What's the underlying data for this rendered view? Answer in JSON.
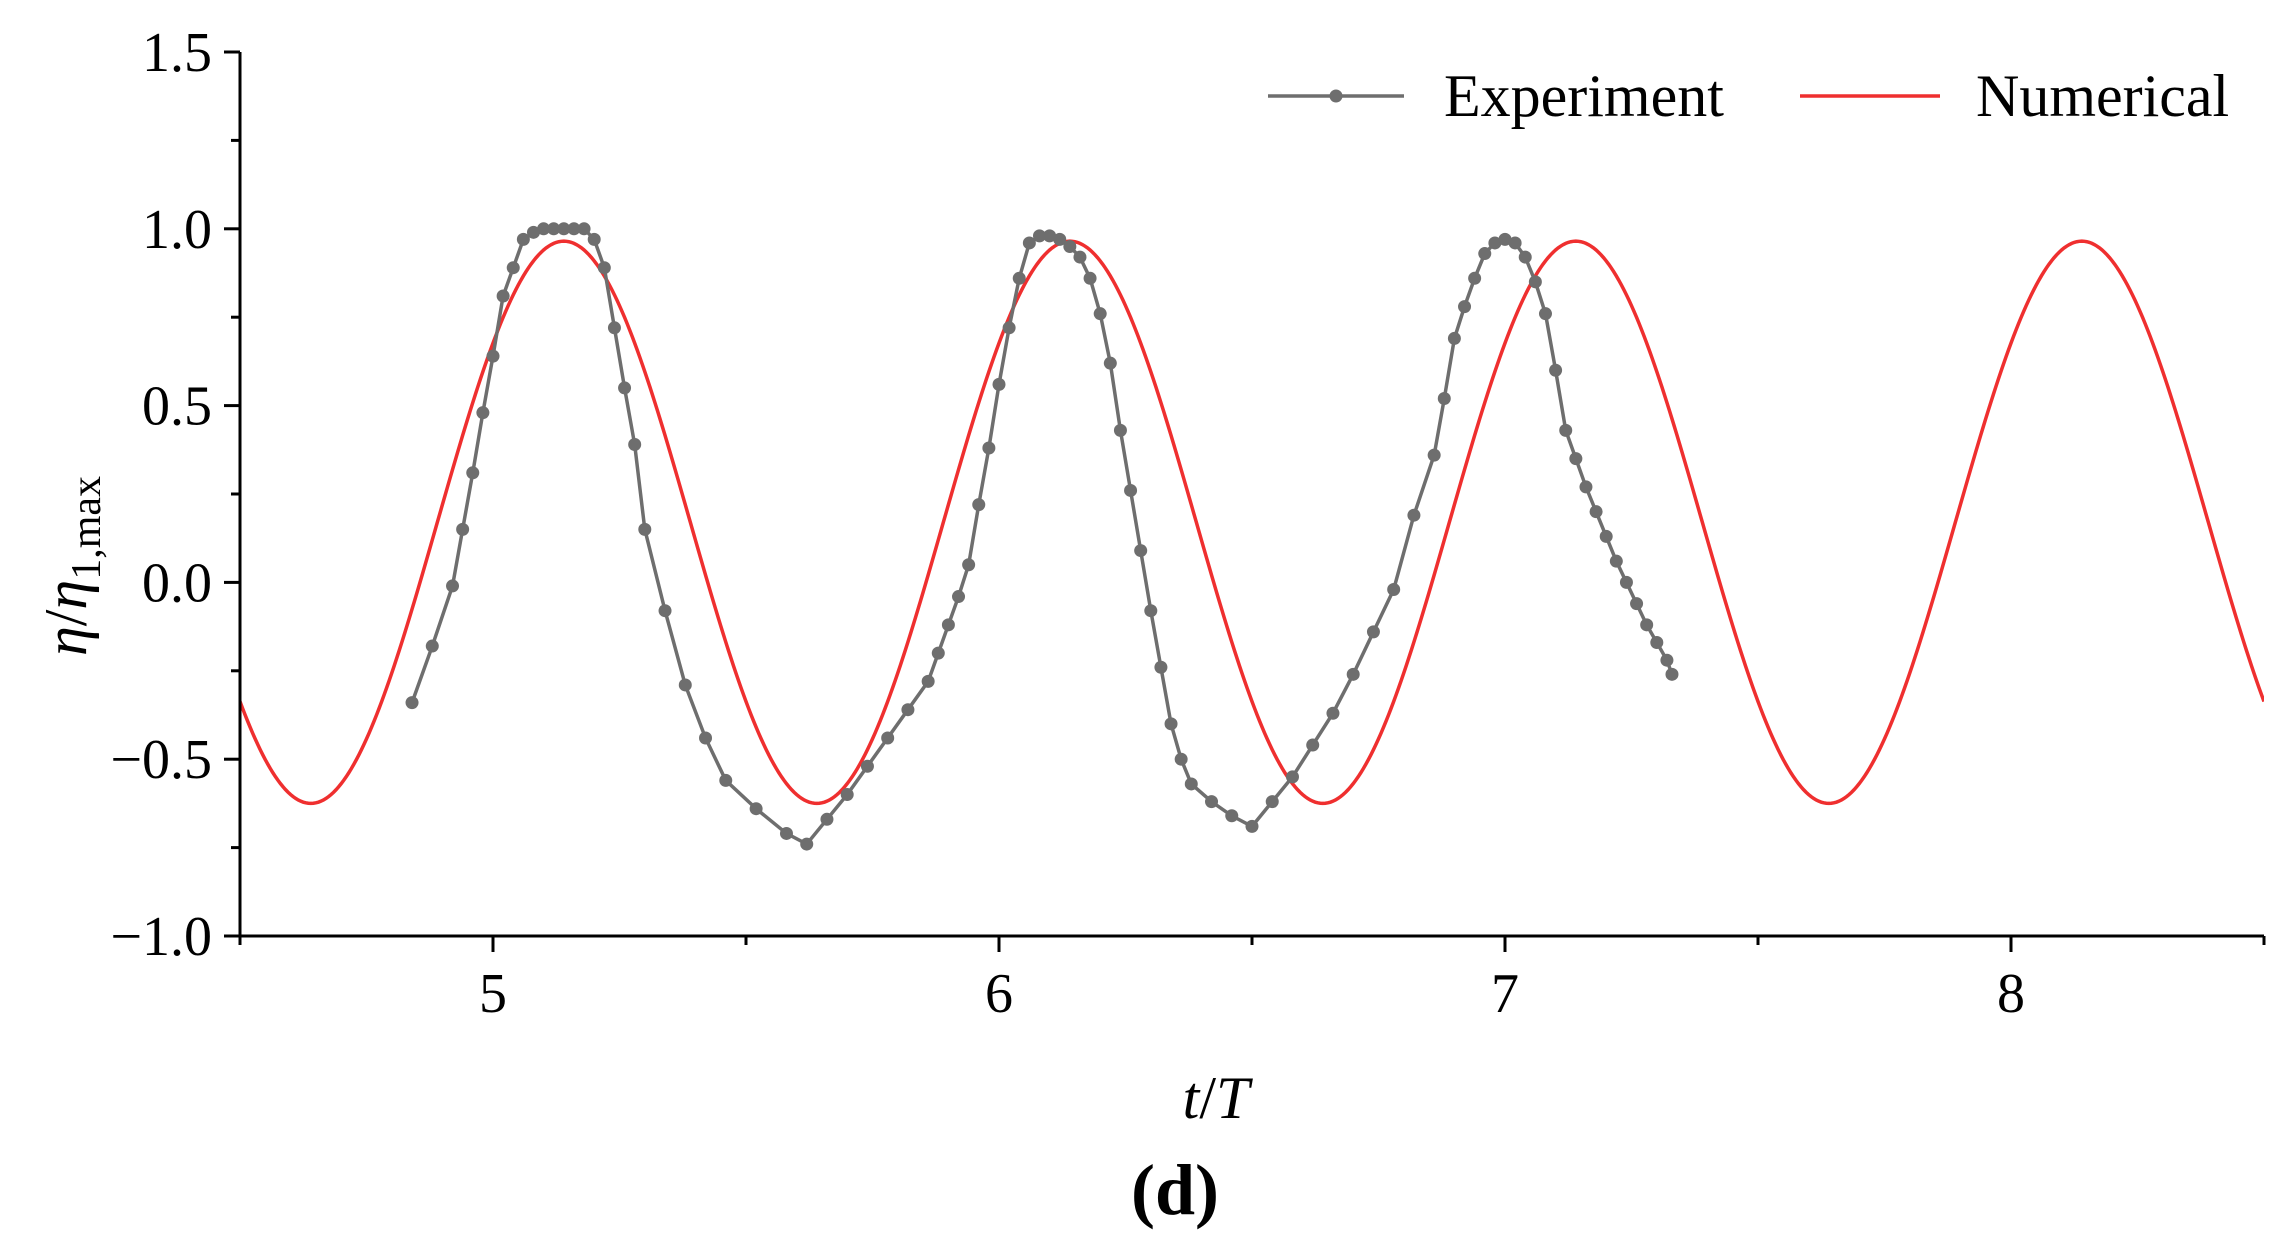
{
  "chart_data": {
    "type": "line",
    "title": "",
    "xlabel": "t/T",
    "ylabel": "η/η1,max",
    "xlabel_parts": {
      "a": "t",
      "sep": "/",
      "b": "T"
    },
    "ylabel_parts": {
      "a": "η",
      "sep": "/",
      "b": "η",
      "sub": "1,max"
    },
    "panel_label": "(d)",
    "xlim": [
      4.5,
      8.5
    ],
    "ylim": [
      -1.0,
      1.5
    ],
    "x_ticks": [
      5,
      6,
      7,
      8
    ],
    "y_ticks": [
      -1.0,
      -0.5,
      0.0,
      0.5,
      1.0,
      1.5
    ],
    "x_tick_labels": [
      "5",
      "6",
      "7",
      "8"
    ],
    "y_tick_labels": [
      "−1.0",
      "−0.5",
      "0.0",
      "0.5",
      "1.0",
      "1.5"
    ],
    "grid": false,
    "legend_position": "top-right",
    "series": [
      {
        "name": "Experiment",
        "color": "#6e6e6e",
        "marker": "circle",
        "x": [
          4.84,
          4.88,
          4.92,
          4.94,
          4.96,
          4.98,
          5.0,
          5.02,
          5.04,
          5.06,
          5.08,
          5.1,
          5.12,
          5.14,
          5.16,
          5.18,
          5.2,
          5.22,
          5.24,
          5.26,
          5.28,
          5.3,
          5.34,
          5.38,
          5.42,
          5.46,
          5.52,
          5.58,
          5.62,
          5.66,
          5.7,
          5.74,
          5.78,
          5.82,
          5.86,
          5.88,
          5.9,
          5.92,
          5.94,
          5.96,
          5.98,
          6.0,
          6.02,
          6.04,
          6.06,
          6.08,
          6.1,
          6.12,
          6.14,
          6.16,
          6.18,
          6.2,
          6.22,
          6.24,
          6.26,
          6.28,
          6.3,
          6.32,
          6.34,
          6.36,
          6.38,
          6.42,
          6.46,
          6.5,
          6.54,
          6.58,
          6.62,
          6.66,
          6.7,
          6.74,
          6.78,
          6.82,
          6.86,
          6.88,
          6.9,
          6.92,
          6.94,
          6.96,
          6.98,
          7.0,
          7.02,
          7.04,
          7.06,
          7.08,
          7.1,
          7.12,
          7.14,
          7.16,
          7.18,
          7.2,
          7.22,
          7.24,
          7.26,
          7.28,
          7.3,
          7.32,
          7.33
        ],
        "y": [
          -0.34,
          -0.18,
          -0.01,
          0.15,
          0.31,
          0.48,
          0.64,
          0.81,
          0.89,
          0.97,
          0.99,
          1.0,
          1.0,
          1.0,
          1.0,
          1.0,
          0.97,
          0.89,
          0.72,
          0.55,
          0.39,
          0.15,
          -0.08,
          -0.29,
          -0.44,
          -0.56,
          -0.64,
          -0.71,
          -0.74,
          -0.67,
          -0.6,
          -0.52,
          -0.44,
          -0.36,
          -0.28,
          -0.2,
          -0.12,
          -0.04,
          0.05,
          0.22,
          0.38,
          0.56,
          0.72,
          0.86,
          0.96,
          0.98,
          0.98,
          0.97,
          0.95,
          0.92,
          0.86,
          0.76,
          0.62,
          0.43,
          0.26,
          0.09,
          -0.08,
          -0.24,
          -0.4,
          -0.5,
          -0.57,
          -0.62,
          -0.66,
          -0.69,
          -0.62,
          -0.55,
          -0.46,
          -0.37,
          -0.26,
          -0.14,
          -0.02,
          0.19,
          0.36,
          0.52,
          0.69,
          0.78,
          0.86,
          0.93,
          0.96,
          0.97,
          0.96,
          0.92,
          0.85,
          0.76,
          0.6,
          0.43,
          0.35,
          0.27,
          0.2,
          0.13,
          0.06,
          0.0,
          -0.06,
          -0.12,
          -0.17,
          -0.22,
          -0.26
        ]
      },
      {
        "name": "Numerical",
        "color": "#ef2f2f",
        "marker": "none",
        "function": "sine",
        "mean": 0.17,
        "amplitude": 0.795,
        "period": 1.0,
        "peak_x": 5.14
      }
    ]
  },
  "legend": {
    "items": [
      "Experiment",
      "Numerical"
    ]
  }
}
